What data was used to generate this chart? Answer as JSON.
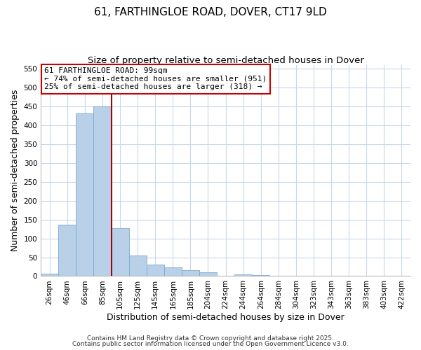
{
  "title": "61, FARTHINGLOE ROAD, DOVER, CT17 9LD",
  "subtitle": "Size of property relative to semi-detached houses in Dover",
  "xlabel": "Distribution of semi-detached houses by size in Dover",
  "ylabel": "Number of semi-detached properties",
  "bar_labels": [
    "26sqm",
    "46sqm",
    "66sqm",
    "85sqm",
    "105sqm",
    "125sqm",
    "145sqm",
    "165sqm",
    "185sqm",
    "204sqm",
    "224sqm",
    "244sqm",
    "264sqm",
    "284sqm",
    "304sqm",
    "323sqm",
    "343sqm",
    "363sqm",
    "383sqm",
    "403sqm",
    "422sqm"
  ],
  "bar_values": [
    7,
    137,
    432,
    450,
    128,
    55,
    30,
    23,
    16,
    10,
    0,
    4,
    2,
    0,
    0,
    0,
    0,
    0,
    0,
    0,
    0
  ],
  "bar_color": "#b8d0e8",
  "bar_edge_color": "#7ba8cc",
  "vline_x_idx": 4,
  "vline_color": "#aa0000",
  "annotation_title": "61 FARTHINGLOE ROAD: 99sqm",
  "annotation_line1": "← 74% of semi-detached houses are smaller (951)",
  "annotation_line2": "25% of semi-detached houses are larger (318) →",
  "annotation_box_color": "#ffffff",
  "annotation_box_edge": "#cc0000",
  "ylim": [
    0,
    560
  ],
  "yticks": [
    0,
    50,
    100,
    150,
    200,
    250,
    300,
    350,
    400,
    450,
    500,
    550
  ],
  "footer1": "Contains HM Land Registry data © Crown copyright and database right 2025.",
  "footer2": "Contains public sector information licensed under the Open Government Licence v3.0.",
  "bg_color": "#ffffff",
  "grid_color": "#c8d8ea",
  "title_fontsize": 11,
  "subtitle_fontsize": 9.5,
  "axis_label_fontsize": 9,
  "tick_fontsize": 7.5,
  "annotation_fontsize": 8,
  "footer_fontsize": 6.5
}
